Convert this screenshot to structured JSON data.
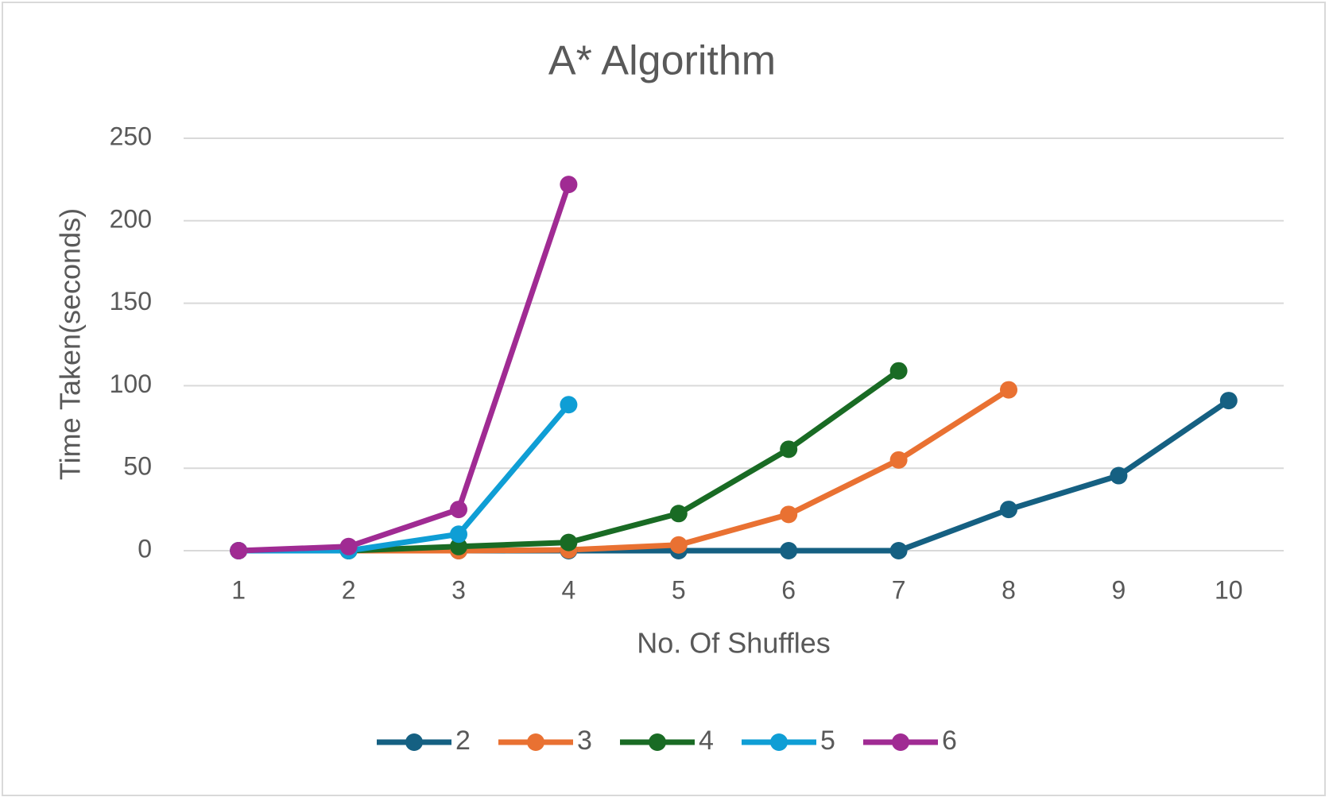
{
  "chart_data": {
    "type": "line",
    "title": "A* Algorithm",
    "x_label": "No. Of Shuffles",
    "y_label": "Time Taken(seconds)",
    "categories": [
      "1",
      "2",
      "3",
      "4",
      "5",
      "6",
      "7",
      "8",
      "9",
      "10"
    ],
    "series": [
      {
        "name": "2",
        "color": "#156082",
        "values": [
          0,
          0,
          0,
          0,
          0,
          0,
          0,
          25,
          45.5,
          91
        ]
      },
      {
        "name": "3",
        "color": "#e97132",
        "values": [
          0,
          0,
          0,
          0.5,
          3.5,
          22,
          55,
          97.5,
          null,
          null
        ]
      },
      {
        "name": "4",
        "color": "#196b24",
        "values": [
          0,
          0,
          2.5,
          5,
          22.5,
          61.5,
          109,
          null,
          null,
          null
        ]
      },
      {
        "name": "5",
        "color": "#0f9ed5",
        "values": [
          0,
          0,
          10,
          88.5,
          null,
          null,
          null,
          null,
          null,
          null
        ]
      },
      {
        "name": "6",
        "color": "#a02b93",
        "values": [
          0,
          2.5,
          25,
          222,
          null,
          null,
          null,
          null,
          null,
          null
        ]
      }
    ],
    "ylim": [
      0,
      250
    ],
    "yticks": [
      0,
      50,
      100,
      150,
      200,
      250
    ],
    "grid": true,
    "legend": "bottom"
  }
}
